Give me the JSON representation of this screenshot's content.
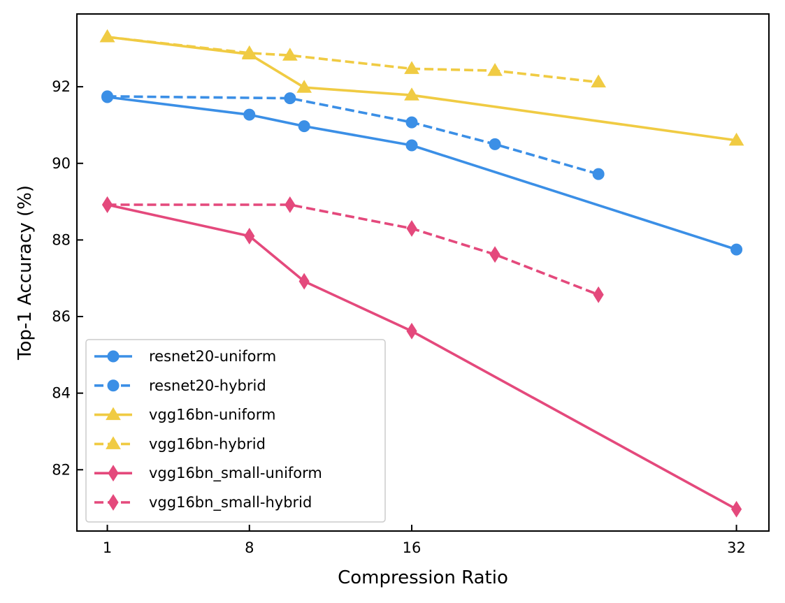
{
  "chart_data": {
    "type": "line",
    "title": "",
    "xlabel": "Compression Ratio",
    "ylabel": "Top-1 Accuracy (%)",
    "xlim": [
      -0.5,
      33.6
    ],
    "ylim": [
      80.4,
      93.9
    ],
    "xticks": [
      1,
      8,
      16,
      32
    ],
    "xtick_labels": [
      "1",
      "8",
      "16",
      "32"
    ],
    "yticks": [
      82,
      84,
      86,
      88,
      90,
      92
    ],
    "ytick_labels": [
      "82",
      "84",
      "86",
      "88",
      "90",
      "92"
    ],
    "grid": false,
    "legend_position": "lower-left",
    "series": [
      {
        "name": "resnet20-uniform",
        "color": "#3b8fe6",
        "linestyle": "solid",
        "marker": "circle",
        "x": [
          1,
          8,
          10.7,
          16,
          32
        ],
        "y": [
          91.73,
          91.27,
          90.97,
          90.47,
          87.75
        ]
      },
      {
        "name": "resnet20-hybrid",
        "color": "#3b8fe6",
        "linestyle": "dashed",
        "marker": "circle",
        "x": [
          1,
          10,
          16,
          20.1,
          25.2
        ],
        "y": [
          91.75,
          91.7,
          91.07,
          90.5,
          89.72
        ]
      },
      {
        "name": "vgg16bn-uniform",
        "color": "#f0cb43",
        "linestyle": "solid",
        "marker": "triangle",
        "x": [
          1,
          8,
          10.7,
          16,
          32
        ],
        "y": [
          93.3,
          92.85,
          91.98,
          91.78,
          90.6
        ]
      },
      {
        "name": "vgg16bn-hybrid",
        "color": "#f0cb43",
        "linestyle": "dashed",
        "marker": "triangle",
        "x": [
          1,
          8,
          10,
          16,
          20.1,
          25.2
        ],
        "y": [
          93.3,
          92.88,
          92.82,
          92.47,
          92.42,
          92.12
        ]
      },
      {
        "name": "vgg16bn_small-uniform",
        "color": "#e4497c",
        "linestyle": "solid",
        "marker": "thin_diamond",
        "x": [
          1,
          8,
          10.7,
          16,
          32
        ],
        "y": [
          88.92,
          88.1,
          86.92,
          85.62,
          80.97
        ]
      },
      {
        "name": "vgg16bn_small-hybrid",
        "color": "#e4497c",
        "linestyle": "dashed",
        "marker": "thin_diamond",
        "x": [
          1,
          10,
          16,
          20.1,
          25.2
        ],
        "y": [
          88.92,
          88.92,
          88.3,
          87.62,
          86.57
        ]
      }
    ]
  }
}
